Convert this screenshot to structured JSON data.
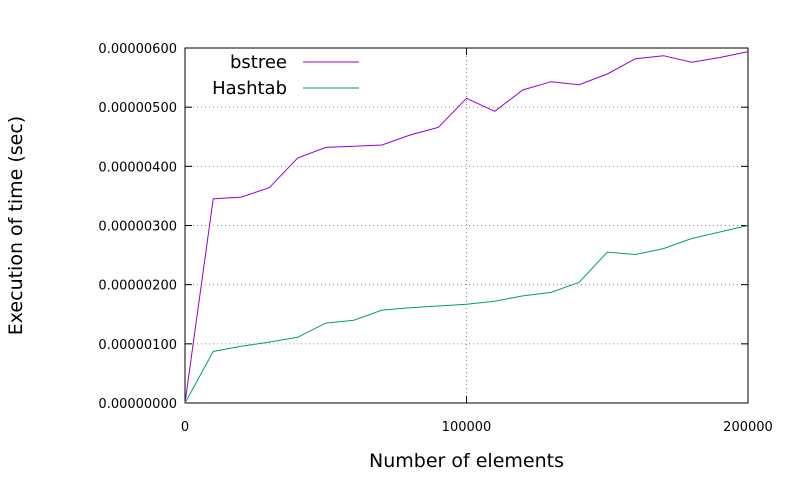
{
  "chart_data": {
    "type": "line",
    "title": "",
    "xlabel": "Number of elements",
    "ylabel": "Execution of time (sec)",
    "xlim": [
      0,
      200000
    ],
    "ylim": [
      0,
      6e-06
    ],
    "x_ticks": [
      0,
      100000,
      200000
    ],
    "x_tick_labels": [
      "0",
      "100000",
      "200000"
    ],
    "y_ticks": [
      0,
      1e-06,
      2e-06,
      3e-06,
      4e-06,
      5e-06,
      6e-06
    ],
    "y_tick_labels": [
      "0.00000000",
      "0.00000100",
      "0.00000200",
      "0.00000300",
      "0.00000400",
      "0.00000500",
      "0.00000600"
    ],
    "grid": true,
    "legend_position": "top-left",
    "x": [
      0,
      10000,
      20000,
      30000,
      40000,
      50000,
      60000,
      70000,
      80000,
      90000,
      100000,
      110000,
      120000,
      130000,
      140000,
      150000,
      160000,
      170000,
      180000,
      190000,
      200000
    ],
    "series": [
      {
        "name": "bstree",
        "color": "#9400d3",
        "values": [
          0,
          3.45e-06,
          3.48e-06,
          3.64e-06,
          4.14e-06,
          4.32e-06,
          4.34e-06,
          4.36e-06,
          4.53e-06,
          4.66e-06,
          5.15e-06,
          4.93e-06,
          5.29e-06,
          5.43e-06,
          5.38e-06,
          5.56e-06,
          5.82e-06,
          5.87e-06,
          5.76e-06,
          5.84e-06,
          5.94e-06
        ]
      },
      {
        "name": "Hashtab",
        "color": "#009e73",
        "values": [
          0,
          8.7e-07,
          9.6e-07,
          1.03e-06,
          1.11e-06,
          1.35e-06,
          1.4e-06,
          1.57e-06,
          1.61e-06,
          1.64e-06,
          1.67e-06,
          1.72e-06,
          1.81e-06,
          1.87e-06,
          2.04e-06,
          2.55e-06,
          2.51e-06,
          2.61e-06,
          2.78e-06,
          2.89e-06,
          3e-06
        ]
      }
    ]
  }
}
